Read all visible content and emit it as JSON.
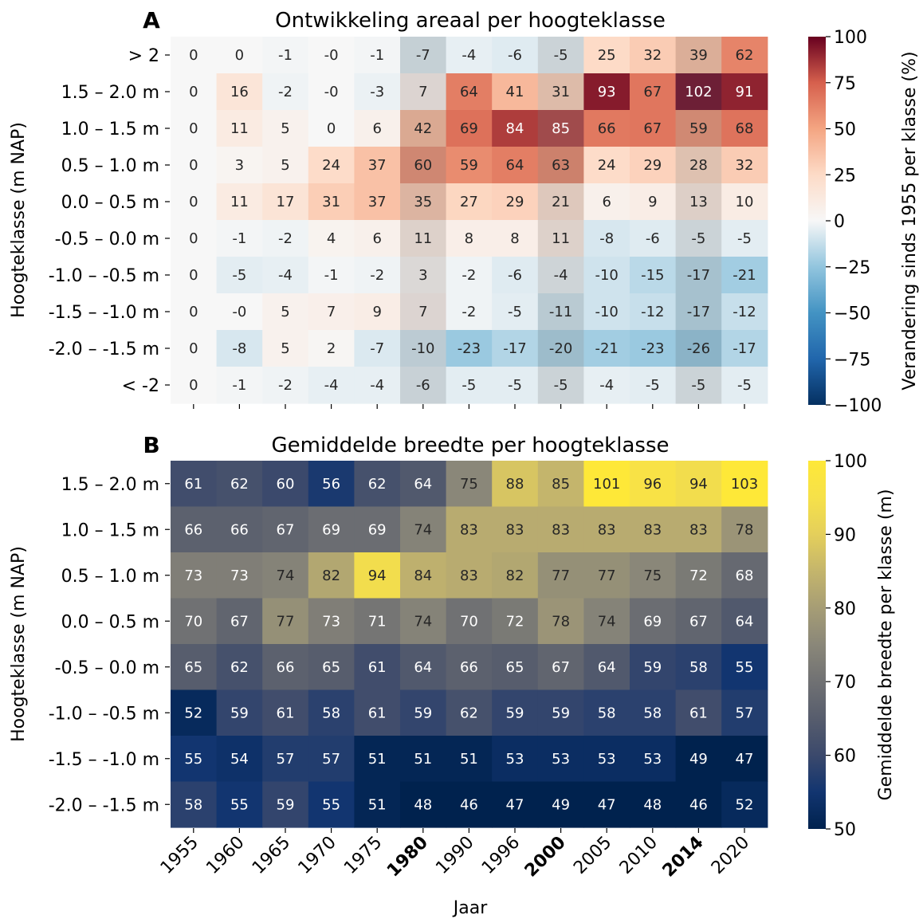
{
  "x_label": "Jaar",
  "bold_years": [
    "1980",
    "2000",
    "2014"
  ],
  "chart_data": [
    {
      "panel": "A",
      "type": "heatmap",
      "title": "Ontwikkeling areaal per hoogteklasse",
      "xlabel": "Jaar",
      "ylabel": "Hoogteklasse (m NAP)",
      "x": [
        "1955",
        "1960",
        "1965",
        "1970",
        "1975",
        "1980",
        "1990",
        "1996",
        "2000",
        "2005",
        "2010",
        "2014",
        "2020"
      ],
      "y": [
        "> 2",
        "1.5 – 2.0 m",
        "1.0 – 1.5 m",
        "0.5 – 1.0 m",
        "0.0 – 0.5 m",
        "-0.5 – 0.0 m",
        "-1.0 – -0.5 m",
        "-1.5 – -1.0 m",
        "-2.0 – -1.5 m",
        "< -2"
      ],
      "values": [
        [
          "0",
          "0",
          "-1",
          "-0",
          "-1",
          "-7",
          "-4",
          "-6",
          "-5",
          "25",
          "32",
          "39",
          "62"
        ],
        [
          "0",
          "16",
          "-2",
          "-0",
          "-3",
          "7",
          "64",
          "41",
          "31",
          "93",
          "67",
          "102",
          "91"
        ],
        [
          "0",
          "11",
          "5",
          "0",
          "6",
          "42",
          "69",
          "84",
          "85",
          "66",
          "67",
          "59",
          "68"
        ],
        [
          "0",
          "3",
          "5",
          "24",
          "37",
          "60",
          "59",
          "64",
          "63",
          "24",
          "29",
          "28",
          "32"
        ],
        [
          "0",
          "11",
          "17",
          "31",
          "37",
          "35",
          "27",
          "29",
          "21",
          "6",
          "9",
          "13",
          "10"
        ],
        [
          "0",
          "-1",
          "-2",
          "4",
          "6",
          "11",
          "8",
          "8",
          "11",
          "-8",
          "-6",
          "-5",
          "-5"
        ],
        [
          "0",
          "-5",
          "-4",
          "-1",
          "-2",
          "3",
          "-2",
          "-6",
          "-4",
          "-10",
          "-15",
          "-17",
          "-21"
        ],
        [
          "0",
          "-0",
          "5",
          "7",
          "9",
          "7",
          "-2",
          "-5",
          "-11",
          "-10",
          "-12",
          "-17",
          "-12"
        ],
        [
          "0",
          "-8",
          "5",
          "2",
          "-7",
          "-10",
          "-23",
          "-17",
          "-20",
          "-21",
          "-23",
          "-26",
          "-17"
        ],
        [
          "0",
          "-1",
          "-2",
          "-4",
          "-4",
          "-6",
          "-5",
          "-5",
          "-5",
          "-4",
          "-5",
          "-5",
          "-5"
        ]
      ],
      "colorbar": {
        "label": "Verandering sinds 1955 per klasse (%)",
        "min": -100,
        "max": 100,
        "ticks": [
          "−100",
          "−75",
          "−50",
          "−25",
          "0",
          "25",
          "50",
          "75",
          "100"
        ],
        "colormap": "RdBu_r"
      },
      "highlighted_columns": [
        "1980",
        "2000",
        "2014"
      ]
    },
    {
      "panel": "B",
      "type": "heatmap",
      "title": "Gemiddelde breedte per hoogteklasse",
      "xlabel": "Jaar",
      "ylabel": "Hoogteklasse (m NAP)",
      "x": [
        "1955",
        "1960",
        "1965",
        "1970",
        "1975",
        "1980",
        "1990",
        "1996",
        "2000",
        "2005",
        "2010",
        "2014",
        "2020"
      ],
      "y": [
        "1.5 – 2.0 m",
        "1.0 – 1.5 m",
        "0.5 – 1.0 m",
        "0.0 – 0.5 m",
        "-0.5 – 0.0 m",
        "-1.0 – -0.5 m",
        "-1.5 – -1.0 m",
        "-2.0 – -1.5 m"
      ],
      "values": [
        [
          "61",
          "62",
          "60",
          "56",
          "62",
          "64",
          "75",
          "88",
          "85",
          "101",
          "96",
          "94",
          "103"
        ],
        [
          "66",
          "66",
          "67",
          "69",
          "69",
          "74",
          "83",
          "83",
          "83",
          "83",
          "83",
          "83",
          "78"
        ],
        [
          "73",
          "73",
          "74",
          "82",
          "94",
          "84",
          "83",
          "82",
          "77",
          "77",
          "75",
          "72",
          "68"
        ],
        [
          "70",
          "67",
          "77",
          "73",
          "71",
          "74",
          "70",
          "72",
          "78",
          "74",
          "69",
          "67",
          "64"
        ],
        [
          "65",
          "62",
          "66",
          "65",
          "61",
          "64",
          "66",
          "65",
          "67",
          "64",
          "59",
          "58",
          "55"
        ],
        [
          "52",
          "59",
          "61",
          "58",
          "61",
          "59",
          "62",
          "59",
          "59",
          "58",
          "58",
          "61",
          "57"
        ],
        [
          "55",
          "54",
          "57",
          "57",
          "51",
          "51",
          "51",
          "53",
          "53",
          "53",
          "53",
          "49",
          "47"
        ],
        [
          "58",
          "55",
          "59",
          "55",
          "51",
          "48",
          "46",
          "47",
          "49",
          "47",
          "48",
          "46",
          "52"
        ]
      ],
      "colorbar": {
        "label": "Gemiddelde breedte per klasse (m)",
        "min": 50,
        "max": 100,
        "ticks": [
          "50",
          "60",
          "70",
          "80",
          "90",
          "100"
        ],
        "colormap": "cividis"
      },
      "highlighted_columns": [
        "1980",
        "2000",
        "2014"
      ]
    }
  ]
}
